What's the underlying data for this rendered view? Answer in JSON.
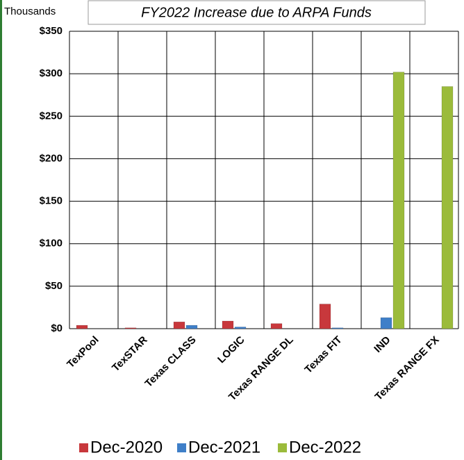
{
  "chart_data": {
    "type": "bar",
    "title": "FY2022 Increase due to ARPA Funds",
    "y_axis_label": "Thousands",
    "categories": [
      "TexPool",
      "TexSTAR",
      "Texas CLASS",
      "LOGIC",
      "Texas RANGE DL",
      "Texas FIT",
      "IND",
      "Texas RANGE FX"
    ],
    "series": [
      {
        "name": "Dec-2020",
        "color": "#c8383c",
        "values": [
          4,
          1,
          8,
          9,
          6,
          29,
          0,
          0
        ]
      },
      {
        "name": "Dec-2021",
        "color": "#3f7fc8",
        "values": [
          0,
          0,
          4,
          2,
          0,
          1,
          13,
          0
        ]
      },
      {
        "name": "Dec-2022",
        "color": "#9bbb3b",
        "values": [
          0,
          0,
          0,
          0,
          0,
          0,
          302,
          285
        ]
      }
    ],
    "ylim": [
      0,
      350
    ],
    "yticks": [
      {
        "value": 0,
        "label": "$0"
      },
      {
        "value": 50,
        "label": "$50"
      },
      {
        "value": 100,
        "label": "$100"
      },
      {
        "value": 150,
        "label": "$150"
      },
      {
        "value": 200,
        "label": "$200"
      },
      {
        "value": 250,
        "label": "$250"
      },
      {
        "value": 300,
        "label": "$300"
      },
      {
        "value": 350,
        "label": "$350"
      }
    ],
    "grid": true,
    "legend": "bottom"
  }
}
